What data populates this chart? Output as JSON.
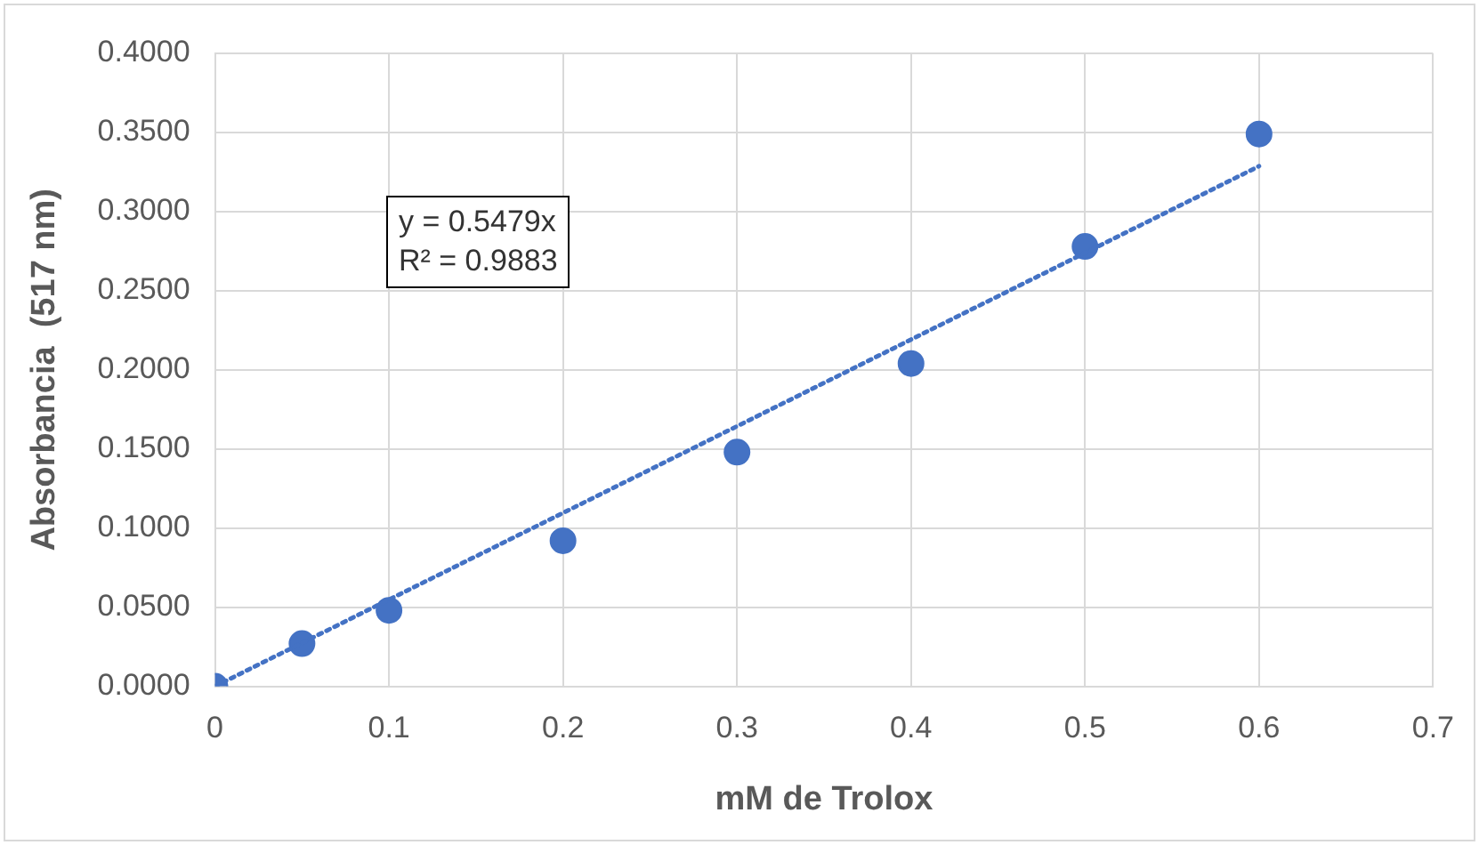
{
  "chart_data": {
    "type": "scatter",
    "xlabel": "mM de Trolox",
    "ylabel": "Absorbancia  (517 nm)",
    "xlim": [
      0,
      0.7
    ],
    "xticks": [
      0,
      0.1,
      0.2,
      0.3,
      0.4,
      0.5,
      0.6,
      0.7
    ],
    "ylim": [
      0,
      0.4
    ],
    "yticks": [
      {
        "value": 0,
        "label": "0.0000"
      },
      {
        "value": 0.05,
        "label": "0.0500"
      },
      {
        "value": 0.1,
        "label": "0.1000"
      },
      {
        "value": 0.15,
        "label": "0.1500"
      },
      {
        "value": 0.2,
        "label": "0.2000"
      },
      {
        "value": 0.25,
        "label": "0.2500"
      },
      {
        "value": 0.3,
        "label": "0.3000"
      },
      {
        "value": 0.35,
        "label": "0.3500"
      },
      {
        "value": 0.4,
        "label": "0.4000"
      }
    ],
    "grid": true,
    "legend": false,
    "marker": "circle",
    "series": [
      {
        "color": "#4472c4",
        "x": [
          0,
          0.05,
          0.1,
          0.2,
          0.3,
          0.4,
          0.5,
          0.6
        ],
        "values": [
          0,
          0.027,
          0.048,
          0.092,
          0.148,
          0.204,
          0.278,
          0.349
        ]
      },
      {
        "type": "line",
        "color": "#4472c4",
        "line_style": "dotted",
        "marker": "none",
        "x": [
          0,
          0.6
        ],
        "values": [
          0,
          0.3287
        ]
      }
    ],
    "annotations": [
      "y = 0.5479x",
      "R² = 0.9883"
    ]
  }
}
